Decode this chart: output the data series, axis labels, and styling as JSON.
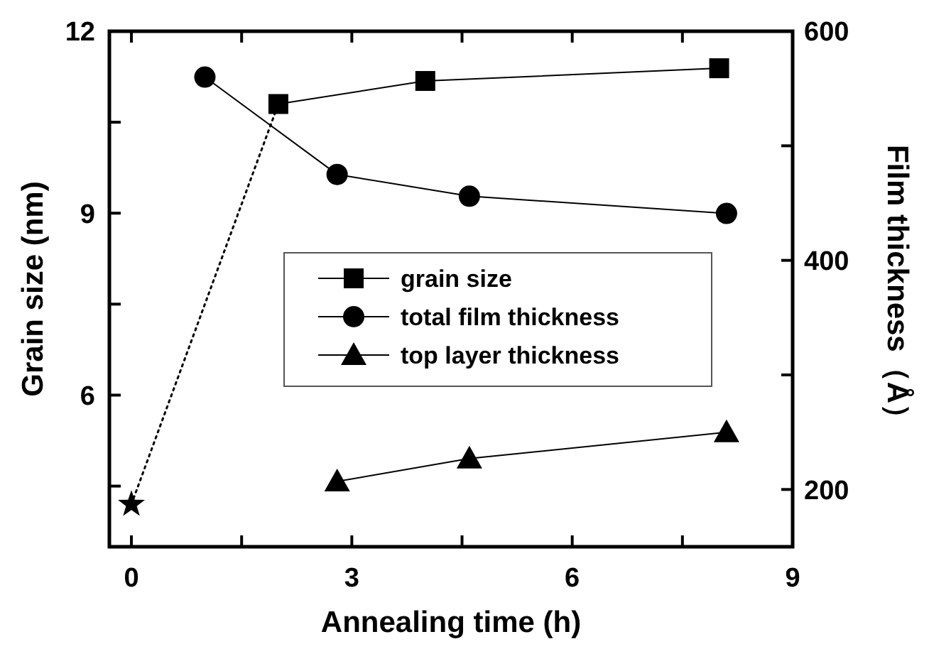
{
  "chart_data": {
    "type": "line",
    "xlabel": "Annealing time (h)",
    "ylabel": "Grain size (nm)",
    "y2label": "Film thickness（Å）",
    "xlim": [
      -0.3,
      9
    ],
    "xticks": [
      0,
      {
        "value": 1.5,
        "label": null
      },
      3,
      {
        "value": 4.5,
        "label": null
      },
      6,
      {
        "value": 7.5,
        "label": null
      },
      9
    ],
    "ylim": [
      3.5,
      12
    ],
    "yticks": [
      {
        "value": 4.5,
        "label": null
      },
      6,
      {
        "value": 7.5,
        "label": null
      },
      9,
      {
        "value": 10.5,
        "label": null
      },
      12
    ],
    "y2lim": [
      150,
      600
    ],
    "y2ticks": [
      200,
      {
        "value": 300,
        "label": null
      },
      400,
      {
        "value": 500,
        "label": null
      },
      600
    ],
    "legend": "right",
    "grid": false,
    "series": [
      {
        "name": "grain size",
        "color": "#000000",
        "x": [
          2,
          4,
          8
        ],
        "values": [
          10.8,
          11.18,
          11.39
        ],
        "marker": "square",
        "line_style": "solid"
      },
      {
        "type": "scatter",
        "color": "#000000",
        "x": [
          0
        ],
        "values": [
          4.2
        ],
        "marker": "star"
      },
      {
        "color": "#000000",
        "x": [
          0,
          2
        ],
        "values": [
          4.2,
          10.8
        ],
        "marker": "none",
        "line_style": "dotted"
      },
      {
        "name": "total film thickness",
        "color": "#000000",
        "axis": "y2",
        "x": [
          1,
          2.8,
          4.6,
          8.1
        ],
        "values": [
          560,
          475,
          456,
          441
        ],
        "marker": "circle",
        "line_style": "solid"
      },
      {
        "name": "top layer thickness",
        "color": "#000000",
        "axis": "y2",
        "x": [
          2.8,
          4.6,
          8.1
        ],
        "values": [
          207,
          227,
          250
        ],
        "marker": "triangle",
        "line_style": "solid"
      }
    ]
  }
}
